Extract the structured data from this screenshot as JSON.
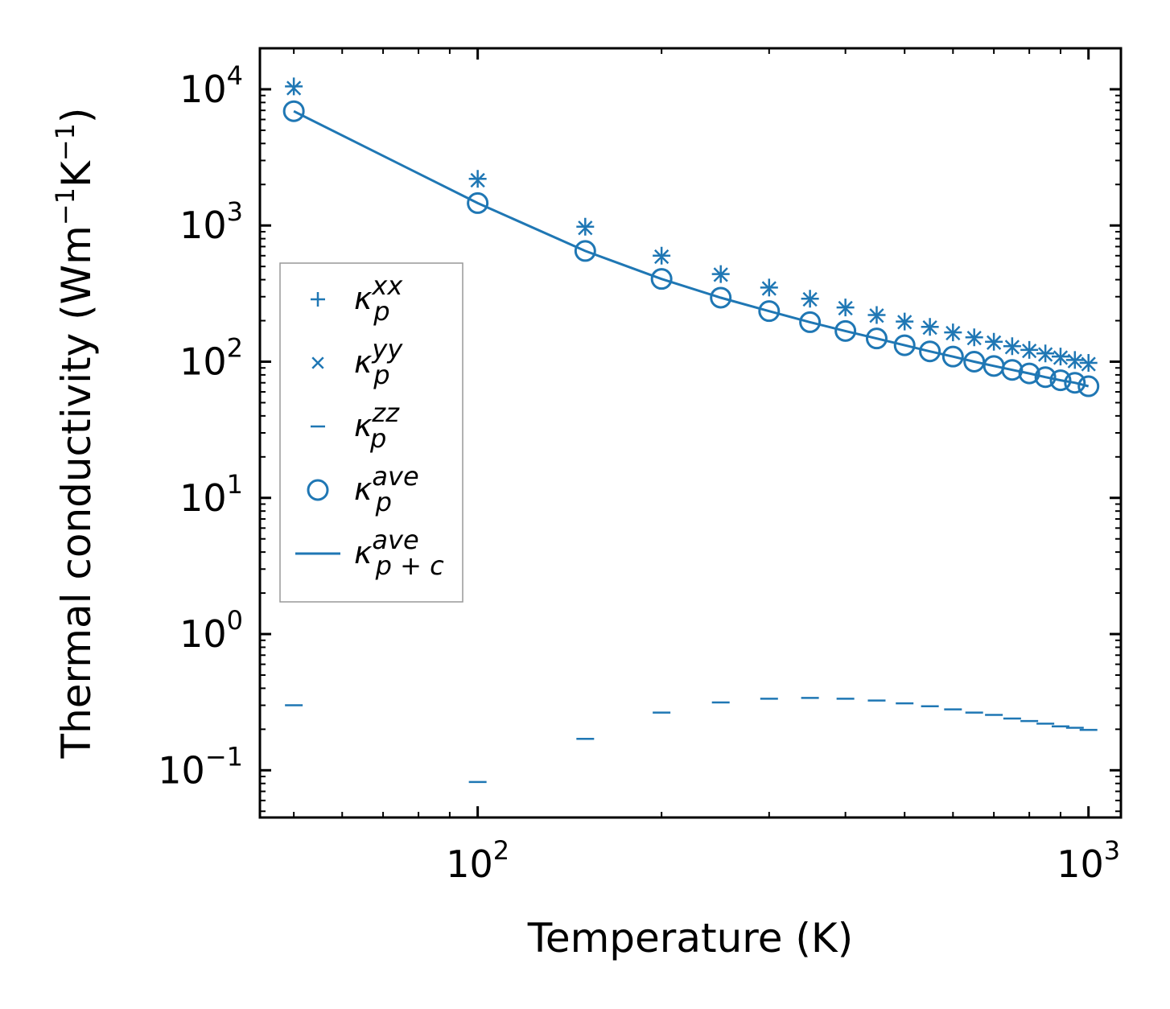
{
  "chart_data": {
    "type": "scatter",
    "xscale": "log",
    "yscale": "log",
    "xlabel": "Temperature (K)",
    "ylabel": {
      "base": "Thermal conductivity (Wm",
      "sup1": "−1",
      "mid": "K",
      "sup2": "−1",
      "end": ")"
    },
    "xlim": [
      44,
      1130
    ],
    "ylim": [
      0.045,
      20000
    ],
    "x_ticks": [
      {
        "value": 100,
        "base": "10",
        "exp": "2"
      },
      {
        "value": 1000,
        "base": "10",
        "exp": "3"
      }
    ],
    "y_ticks": [
      {
        "value": 10000,
        "base": "10",
        "exp": "4"
      },
      {
        "value": 1000,
        "base": "10",
        "exp": "3"
      },
      {
        "value": 100,
        "base": "10",
        "exp": "2"
      },
      {
        "value": 10,
        "base": "10",
        "exp": "1"
      },
      {
        "value": 1,
        "base": "10",
        "exp": "0"
      },
      {
        "value": 0.1,
        "base": "10",
        "exp": "−1"
      }
    ],
    "x": [
      50,
      100,
      150,
      200,
      250,
      300,
      350,
      400,
      450,
      500,
      550,
      600,
      650,
      700,
      750,
      800,
      850,
      900,
      950,
      1000
    ],
    "series": [
      {
        "name": "kappa_p_xx",
        "label_sub": "p",
        "label_sup": "xx",
        "marker": "plus",
        "values": [
          10500,
          2200,
          980,
          600,
          440,
          350,
          290,
          250,
          220,
          197,
          180,
          164,
          151,
          140,
          130,
          122,
          115,
          109,
          103,
          98
        ]
      },
      {
        "name": "kappa_p_yy",
        "label_sub": "p",
        "label_sup": "yy",
        "marker": "x",
        "values": [
          10200,
          2150,
          960,
          590,
          435,
          345,
          287,
          247,
          218,
          195,
          178,
          162,
          149,
          138,
          128,
          120,
          113,
          107,
          101,
          96
        ]
      },
      {
        "name": "kappa_p_zz",
        "label_sub": "p",
        "label_sup": "zz",
        "marker": "hline",
        "values": [
          0.3,
          0.082,
          0.17,
          0.265,
          0.315,
          0.335,
          0.34,
          0.335,
          0.325,
          0.31,
          0.295,
          0.28,
          0.265,
          0.255,
          0.24,
          0.23,
          0.22,
          0.21,
          0.205,
          0.198
        ]
      },
      {
        "name": "kappa_p_ave",
        "label_sub": "p",
        "label_sup": "ave",
        "marker": "circle",
        "values": [
          6900,
          1460,
          650,
          405,
          295,
          235,
          195,
          168,
          148,
          132,
          119,
          109,
          100,
          93,
          87,
          82,
          77,
          73,
          70,
          66
        ]
      },
      {
        "name": "kappa_pc_ave",
        "label_sub": "p + c",
        "label_sup": "ave",
        "marker": "line",
        "values": [
          6900,
          1460,
          650,
          405,
          295,
          235,
          195,
          168,
          148,
          132,
          119,
          109,
          100,
          93,
          87,
          82,
          77,
          73,
          70,
          66
        ]
      }
    ],
    "legend_position": "center-left",
    "legend_symbol": "κ",
    "color": "#1f77b4",
    "grid": false
  }
}
